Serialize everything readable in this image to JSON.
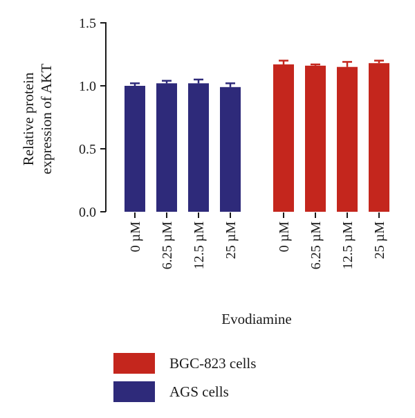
{
  "chart_data": {
    "type": "bar",
    "ylabel_lines": [
      "Relative protein",
      "expression of AKT"
    ],
    "xlabel": "Evodiamine",
    "ylim": [
      0,
      1.5
    ],
    "yticks": [
      "0.0",
      "0.5",
      "1.0",
      "1.5"
    ],
    "groups": [
      {
        "name": "AGS cells",
        "color": "#2e2a7a",
        "categories": [
          "0 µM",
          "6.25 µM",
          "12.5 µM",
          "25 µM"
        ],
        "values": [
          1.0,
          1.02,
          1.02,
          0.99
        ],
        "errors": [
          0.02,
          0.02,
          0.03,
          0.03
        ]
      },
      {
        "name": "BGC-823 cells",
        "color": "#c4261d",
        "categories": [
          "0 µM",
          "6.25 µM",
          "12.5 µM",
          "25 µM"
        ],
        "values": [
          1.17,
          1.16,
          1.15,
          1.18
        ],
        "errors": [
          0.03,
          0.01,
          0.04,
          0.02
        ]
      }
    ],
    "legend": [
      {
        "label": "BGC-823 cells",
        "color": "#c4261d"
      },
      {
        "label": "AGS cells",
        "color": "#2e2a7a"
      }
    ],
    "legend_position": "bottom-center"
  }
}
